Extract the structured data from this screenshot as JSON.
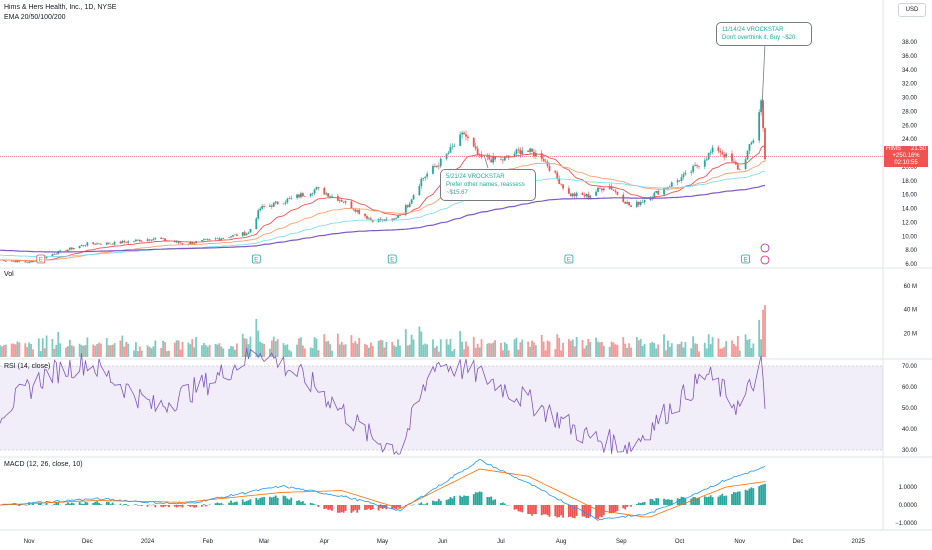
{
  "header": {
    "title": "Hims & Hers Health, Inc., 1D, NYSE",
    "ema_label": "EMA 20/50/100/200",
    "currency": "USD"
  },
  "labels": {
    "volume": "Vol",
    "rsi": "RSI (14, close)",
    "macd": "MACD (12, 26, close, 10)"
  },
  "annotations": {
    "note1_line1": "11/14/24 VROCKSTAR",
    "note1_line2": "Don't overthink it. Buy ~$20.",
    "note2_line1": "5/21/24 VROCKSTAR",
    "note2_line2": "Prefer other names, reassess",
    "note2_line3": "~$15.67"
  },
  "price_tag": {
    "symbol": "HIMS",
    "price": "21.50",
    "change": "+250.16%",
    "countdown": "02:10:55"
  },
  "colors": {
    "up": "#26a69a",
    "down": "#ef5350",
    "ema20": "#ef5350",
    "ema50": "#f7a072",
    "ema100": "#80deea",
    "ema200": "#7e57c2",
    "rsi_line": "#7e57c2",
    "rsi_band": "#7e57c21a",
    "macd_line": "#2196f3",
    "signal_line": "#ff6d00",
    "price_line": "#ef5350"
  },
  "chart_data": {
    "type": "candlestick",
    "y_axis_ticks": [
      "6.00",
      "8.00",
      "10.00",
      "12.00",
      "14.00",
      "16.00",
      "18.00",
      "20.00",
      "22.00",
      "24.00",
      "26.00",
      "28.00",
      "30.00",
      "32.00",
      "34.00",
      "36.00",
      "38.00"
    ],
    "x_axis_ticks": [
      "Nov",
      "Dec",
      "2024",
      "Feb",
      "Mar",
      "Apr",
      "May",
      "Jun",
      "Jul",
      "Aug",
      "Sep",
      "Oct",
      "Nov",
      "Dec",
      "2025"
    ],
    "volume_ticks": [
      "60 M",
      "40 M",
      "20 M"
    ],
    "rsi_ticks": [
      "70.00",
      "60.00",
      "50.00",
      "40.00",
      "30.00"
    ],
    "rsi_band": [
      30,
      70
    ],
    "macd_ticks": [
      "1.0000",
      "0.0000",
      "−1.0000"
    ],
    "price_anchors": [
      {
        "date": "2023-10-17",
        "close": 6.6
      },
      {
        "date": "2023-11-01",
        "close": 6.2
      },
      {
        "date": "2023-11-15",
        "close": 7.6
      },
      {
        "date": "2023-12-01",
        "close": 8.9
      },
      {
        "date": "2023-12-15",
        "close": 9.0
      },
      {
        "date": "2024-01-05",
        "close": 9.7
      },
      {
        "date": "2024-01-20",
        "close": 8.9
      },
      {
        "date": "2024-02-05",
        "close": 9.6
      },
      {
        "date": "2024-02-22",
        "close": 10.5
      },
      {
        "date": "2024-02-28",
        "close": 14.0
      },
      {
        "date": "2024-03-15",
        "close": 15.4
      },
      {
        "date": "2024-03-28",
        "close": 16.8
      },
      {
        "date": "2024-04-10",
        "close": 15.2
      },
      {
        "date": "2024-04-25",
        "close": 12.4
      },
      {
        "date": "2024-05-06",
        "close": 12.2
      },
      {
        "date": "2024-05-14",
        "close": 14.5
      },
      {
        "date": "2024-05-21",
        "close": 18.2
      },
      {
        "date": "2024-06-01",
        "close": 21.0
      },
      {
        "date": "2024-06-12",
        "close": 24.8
      },
      {
        "date": "2024-06-20",
        "close": 21.3
      },
      {
        "date": "2024-07-01",
        "close": 20.9
      },
      {
        "date": "2024-07-12",
        "close": 22.5
      },
      {
        "date": "2024-07-22",
        "close": 21.5
      },
      {
        "date": "2024-08-05",
        "close": 16.0
      },
      {
        "date": "2024-08-15",
        "close": 15.8
      },
      {
        "date": "2024-08-25",
        "close": 17.5
      },
      {
        "date": "2024-09-06",
        "close": 14.2
      },
      {
        "date": "2024-09-20",
        "close": 16.4
      },
      {
        "date": "2024-10-05",
        "close": 18.9
      },
      {
        "date": "2024-10-20",
        "close": 22.8
      },
      {
        "date": "2024-11-01",
        "close": 19.6
      },
      {
        "date": "2024-11-08",
        "close": 24.0
      },
      {
        "date": "2024-11-12",
        "close": 29.5
      },
      {
        "date": "2024-11-14",
        "close": 21.5
      }
    ],
    "ema_values": {
      "ema200_end": 17.0,
      "ema100_end": 19.0,
      "ema50_end": 20.6,
      "ema20_end": 22.0
    },
    "rsi_anchors": [
      {
        "date": "2023-10-17",
        "v": 48
      },
      {
        "date": "2023-11-10",
        "v": 66
      },
      {
        "date": "2023-12-01",
        "v": 72
      },
      {
        "date": "2024-01-05",
        "v": 50
      },
      {
        "date": "2024-02-01",
        "v": 62
      },
      {
        "date": "2024-02-28",
        "v": 78
      },
      {
        "date": "2024-03-28",
        "v": 60
      },
      {
        "date": "2024-04-25",
        "v": 36
      },
      {
        "date": "2024-05-10",
        "v": 30
      },
      {
        "date": "2024-05-28",
        "v": 72
      },
      {
        "date": "2024-06-20",
        "v": 66
      },
      {
        "date": "2024-07-22",
        "v": 50
      },
      {
        "date": "2024-08-15",
        "v": 36
      },
      {
        "date": "2024-09-06",
        "v": 32
      },
      {
        "date": "2024-10-15",
        "v": 66
      },
      {
        "date": "2024-11-01",
        "v": 50
      },
      {
        "date": "2024-11-12",
        "v": 70
      },
      {
        "date": "2024-11-14",
        "v": 49
      }
    ],
    "macd_anchors": [
      {
        "date": "2023-10-17",
        "m": 0.0,
        "s": 0.0
      },
      {
        "date": "2023-12-05",
        "m": 0.35,
        "s": 0.25
      },
      {
        "date": "2024-01-20",
        "m": 0.05,
        "s": 0.15
      },
      {
        "date": "2024-03-10",
        "m": 1.05,
        "s": 0.7
      },
      {
        "date": "2024-04-10",
        "m": 0.5,
        "s": 0.8
      },
      {
        "date": "2024-05-10",
        "m": -0.3,
        "s": -0.2
      },
      {
        "date": "2024-06-20",
        "m": 2.5,
        "s": 2.0
      },
      {
        "date": "2024-07-15",
        "m": 1.2,
        "s": 1.6
      },
      {
        "date": "2024-08-20",
        "m": -0.8,
        "s": -0.3
      },
      {
        "date": "2024-09-15",
        "m": -0.5,
        "s": -0.7
      },
      {
        "date": "2024-10-25",
        "m": 1.4,
        "s": 1.0
      },
      {
        "date": "2024-11-14",
        "m": 2.1,
        "s": 1.3
      }
    ]
  }
}
